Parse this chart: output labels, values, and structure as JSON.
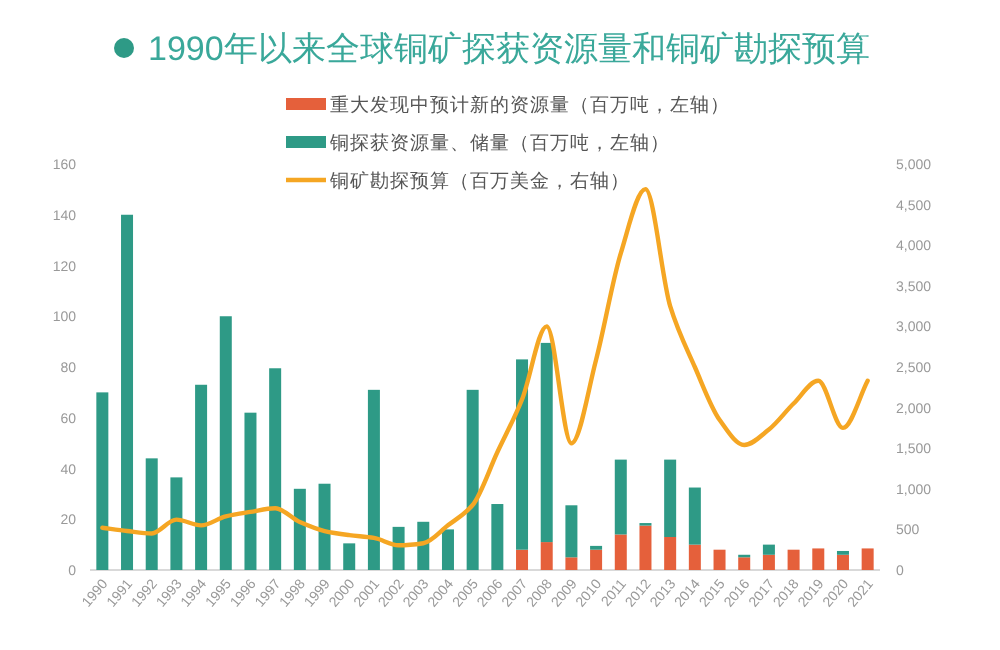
{
  "chart_data": {
    "type": "bar",
    "title": "1990年以来全球铜矿探获资源量和铜矿勘探预算",
    "stacked": true,
    "legend": "top",
    "categories": [
      "1990",
      "1991",
      "1992",
      "1993",
      "1994",
      "1995",
      "1996",
      "1997",
      "1998",
      "1999",
      "2000",
      "2001",
      "2002",
      "2003",
      "2004",
      "2005",
      "2006",
      "2007",
      "2008",
      "2009",
      "2010",
      "2011",
      "2012",
      "2013",
      "2014",
      "2015",
      "2016",
      "2017",
      "2018",
      "2019",
      "2020",
      "2021"
    ],
    "series": [
      {
        "name": "重大发现中预计新的资源量（百万吨，左轴）",
        "color": "#e5603b",
        "values": [
          null,
          null,
          null,
          null,
          null,
          null,
          null,
          null,
          null,
          null,
          null,
          null,
          null,
          null,
          null,
          null,
          null,
          8,
          11,
          5,
          8,
          14,
          17.5,
          13,
          10,
          8,
          5,
          6,
          8,
          8.5,
          6,
          8.5
        ]
      },
      {
        "name": "铜探获资源量、储量（百万吨，左轴）",
        "color": "#2e9a86",
        "values": [
          70,
          140,
          44,
          36.5,
          73,
          100,
          62,
          79.5,
          32,
          34,
          10.5,
          71,
          17,
          19,
          16,
          71,
          26,
          75,
          78.5,
          20.5,
          1.5,
          29.5,
          1,
          30.5,
          22.5,
          null,
          1,
          4,
          null,
          null,
          1.5,
          null
        ]
      },
      {
        "name": "铜矿勘探预算（百万美金，右轴）",
        "type": "line",
        "axis": "y2",
        "color": "#f5a623",
        "values": [
          520,
          480,
          450,
          620,
          550,
          660,
          715,
          760,
          590,
          480,
          430,
          395,
          305,
          330,
          550,
          800,
          1450,
          2100,
          3000,
          1560,
          2590,
          3900,
          4690,
          3250,
          2500,
          1850,
          1540,
          1730,
          2050,
          2330,
          1750,
          2330
        ]
      }
    ],
    "ylim": [
      0,
      160
    ],
    "yticks": [
      0,
      20,
      40,
      60,
      80,
      100,
      120,
      140,
      160
    ],
    "y2lim": [
      0,
      5000
    ],
    "y2ticks": [
      0,
      {
        "value": 500,
        "label": "500"
      },
      {
        "value": 1000,
        "label": "1,000"
      },
      {
        "value": 1500,
        "label": "1,500"
      },
      {
        "value": 2000,
        "label": "2,000"
      },
      {
        "value": 2500,
        "label": "2,500"
      },
      {
        "value": 3000,
        "label": "3,000"
      },
      {
        "value": 3500,
        "label": "3,500"
      },
      {
        "value": 4000,
        "label": "4,000"
      },
      {
        "value": 4500,
        "label": "4,500"
      },
      {
        "value": 5000,
        "label": "5,000"
      }
    ]
  }
}
